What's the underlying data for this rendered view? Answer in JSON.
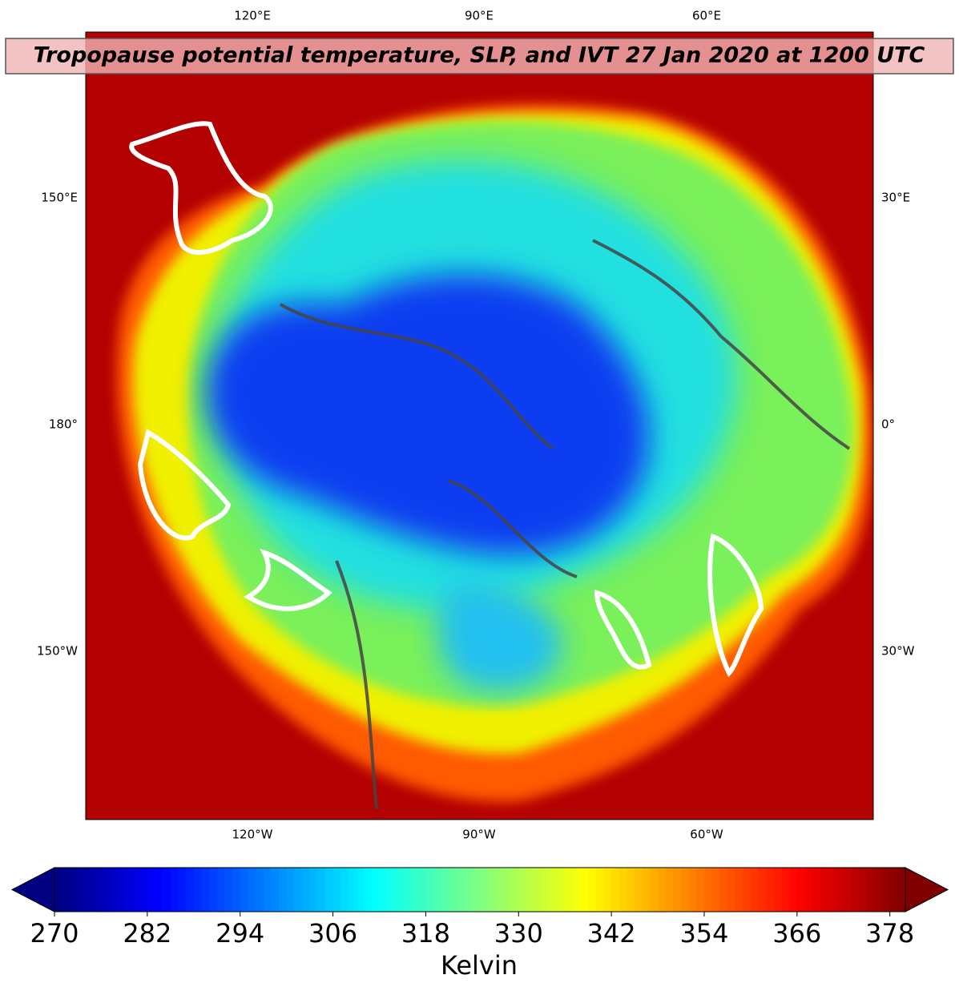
{
  "map": {
    "title": "Tropopause potential temperature, SLP, and IVT 27 Jan 2020 at 1200 UTC",
    "lon_labels": {
      "top": [
        "120°E",
        "90°E",
        "60°E"
      ],
      "left": [
        "150°E",
        "180°",
        "150°W"
      ],
      "right": [
        "30°E",
        "0°",
        "30°W"
      ],
      "bottom": [
        "120°W",
        "90°W",
        "60°W"
      ]
    }
  },
  "colorbar": {
    "label": "Kelvin",
    "colormap": "jet",
    "extend": "both",
    "lim": [
      270,
      380
    ],
    "ticks": [
      270,
      282,
      294,
      306,
      318,
      330,
      342,
      354,
      366,
      378
    ]
  }
}
